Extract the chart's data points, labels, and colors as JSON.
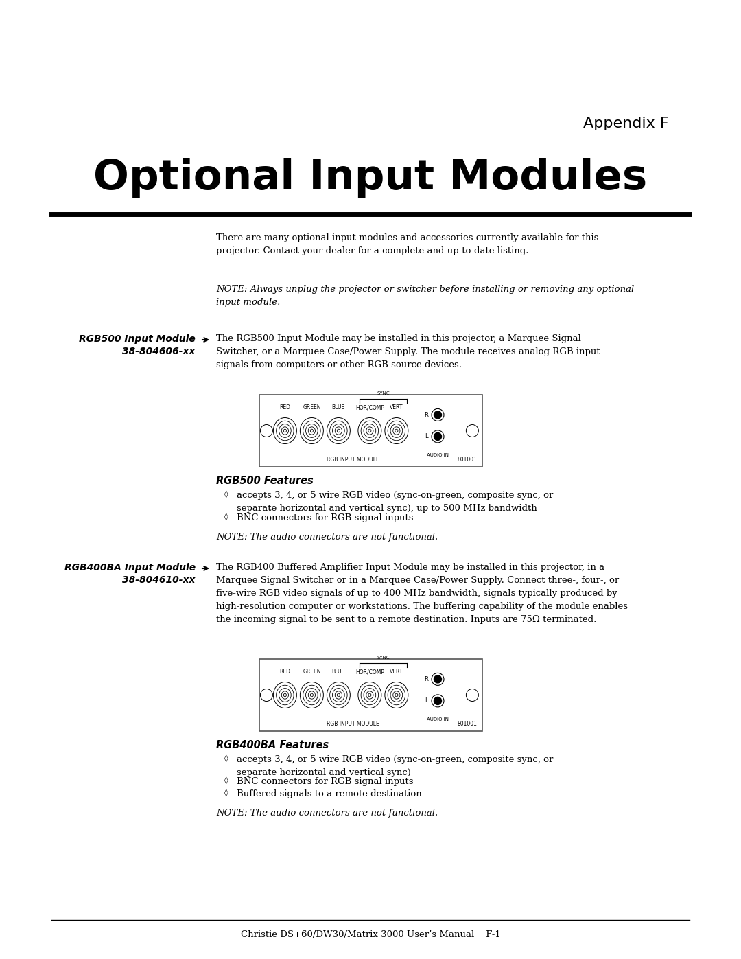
{
  "bg_color": "#ffffff",
  "text_color": "#000000",
  "page_width": 10.8,
  "page_height": 13.97,
  "appendix_label": "Appendix F",
  "main_title": "Optional Input Modules",
  "intro_text": "There are many optional input modules and accessories currently available for this\nprojector. Contact your dealer for a complete and up-to-date listing.",
  "note_text": "NOTE: Always unplug the projector or switcher before installing or removing any optional\ninput module.",
  "section1_label_line1": "RGB500 Input Module",
  "section1_label_line2": "38-804606-xx",
  "section1_body1": "The ",
  "section1_body1i": "RGB500 Input Module",
  "section1_body1b": " may be installed in this projector, a ",
  "section1_body1c": "Marquee Signal",
  "section1_body2i": "Switcher",
  "section1_body2b": ", or a ",
  "section1_body2c": "Marquee Case/Power Supply",
  "section1_body2d": ". The module receives analog RGB input",
  "section1_body3": "signals from computers or other RGB source devices.",
  "section1_features_title": "RGB500 Features",
  "section1_bullet1a": "accepts 3, 4, or 5 wire RGB video (sync-on-green, composite sync, or",
  "section1_bullet1b": "separate horizontal and vertical sync), up to 500 MHz bandwidth",
  "section1_bullet2": "BNC connectors for RGB signal inputs",
  "section1_note": "NOTE: The audio connectors are not functional.",
  "section2_label_line1": "RGB400BA Input Module",
  "section2_label_line2": "38-804610-xx",
  "section2_body": "The RGB400 Buffered Amplifier Input Module may be installed in this projector, in a\nMarquee Signal Switcher or in a Marquee Case/Power Supply. Connect three-, four-, or\nfive-wire RGB video signals of up to 400 MHz bandwidth, signals typically produced by\nhigh-resolution computer or workstations. The buffering capability of the module enables\nthe incoming signal to be sent to a remote destination. Inputs are 75Ω terminated.",
  "section2_features_title": "RGB400BA Features",
  "section2_bullet1a": "accepts 3, 4, or 5 wire RGB video (sync-on-green, composite sync, or",
  "section2_bullet1b": "separate horizontal and vertical sync)",
  "section2_bullet2": "BNC connectors for RGB signal inputs",
  "section2_bullet3": "Buffered signals to a remote destination",
  "section2_note": "NOTE: The audio connectors are not functional.",
  "footer_text": "Christie DS+60/DW30/Matrix 3000 User’s Manual    F-1"
}
